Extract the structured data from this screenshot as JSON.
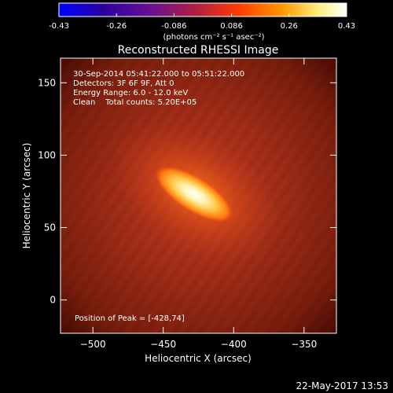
{
  "colorbar": {
    "ticks": [
      "-0.43",
      "-0.26",
      "-0.086",
      "0.086",
      "0.26",
      "0.43"
    ],
    "unit_label": "(photons cm⁻² s⁻¹ asec⁻²)",
    "colors": [
      "#0000ff",
      "#2a00a0",
      "#6a1090",
      "#b02040",
      "#ff3a00",
      "#ff9a00",
      "#ffee80",
      "#ffffff"
    ]
  },
  "image": {
    "title": "Reconstructed RHESSI Image",
    "annotations": [
      "30-Sep-2014 05:41:22.000 to 05:51:22.000",
      "Detectors: 3F 6F 9F, Att 0",
      "Energy Range: 6.0 - 12.0 keV",
      "Clean    Total counts: 5.20E+05"
    ],
    "peak_label": "Position of Peak = [-428,74]",
    "peak_position": [
      -428,
      74
    ],
    "xlabel": "Heliocentric X (arcsec)",
    "ylabel": "Heliocentric Y (arcsec)",
    "x_ticks": [
      -500,
      -450,
      -400,
      -350
    ],
    "y_ticks": [
      0,
      50,
      100,
      150
    ],
    "xlim": [
      -523,
      -327
    ],
    "ylim": [
      -23,
      167
    ]
  },
  "footer": {
    "timestamp": "22-May-2017 13:53"
  }
}
